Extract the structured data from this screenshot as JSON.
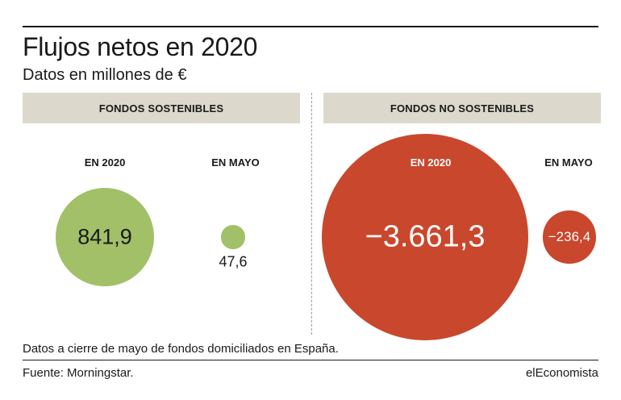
{
  "header": {
    "title": "Flujos netos en 2020",
    "subtitle": "Datos en millones de €"
  },
  "panels": [
    {
      "title": "FONDOS SOSTENIBLES"
    },
    {
      "title": "FONDOS NO SOSTENIBLES"
    }
  ],
  "labels": {
    "year": "EN 2020",
    "may": "EN MAYO"
  },
  "colors": {
    "sostenibles": "#a1c068",
    "no_sostenibles": "#c9472c",
    "header_band": "#dcd9cc"
  },
  "chart_data": {
    "type": "bubble",
    "unit": "millones de €",
    "groups": [
      "FONDOS SOSTENIBLES",
      "FONDOS NO SOSTENIBLES"
    ],
    "periods": [
      "EN 2020",
      "EN MAYO"
    ],
    "series": [
      {
        "group": "FONDOS SOSTENIBLES",
        "period": "EN 2020",
        "value": 841.9,
        "label": "841,9"
      },
      {
        "group": "FONDOS SOSTENIBLES",
        "period": "EN MAYO",
        "value": 47.6,
        "label": "47,6"
      },
      {
        "group": "FONDOS NO SOSTENIBLES",
        "period": "EN 2020",
        "value": -3661.3,
        "label": "−3.661,3"
      },
      {
        "group": "FONDOS NO SOSTENIBLES",
        "period": "EN MAYO",
        "value": -236.4,
        "label": "−236,4"
      }
    ]
  },
  "footer": {
    "note": "Datos a cierre de mayo de fondos domiciliados en España.",
    "source": "Fuente: Morningstar.",
    "brand": "elEconomista"
  }
}
